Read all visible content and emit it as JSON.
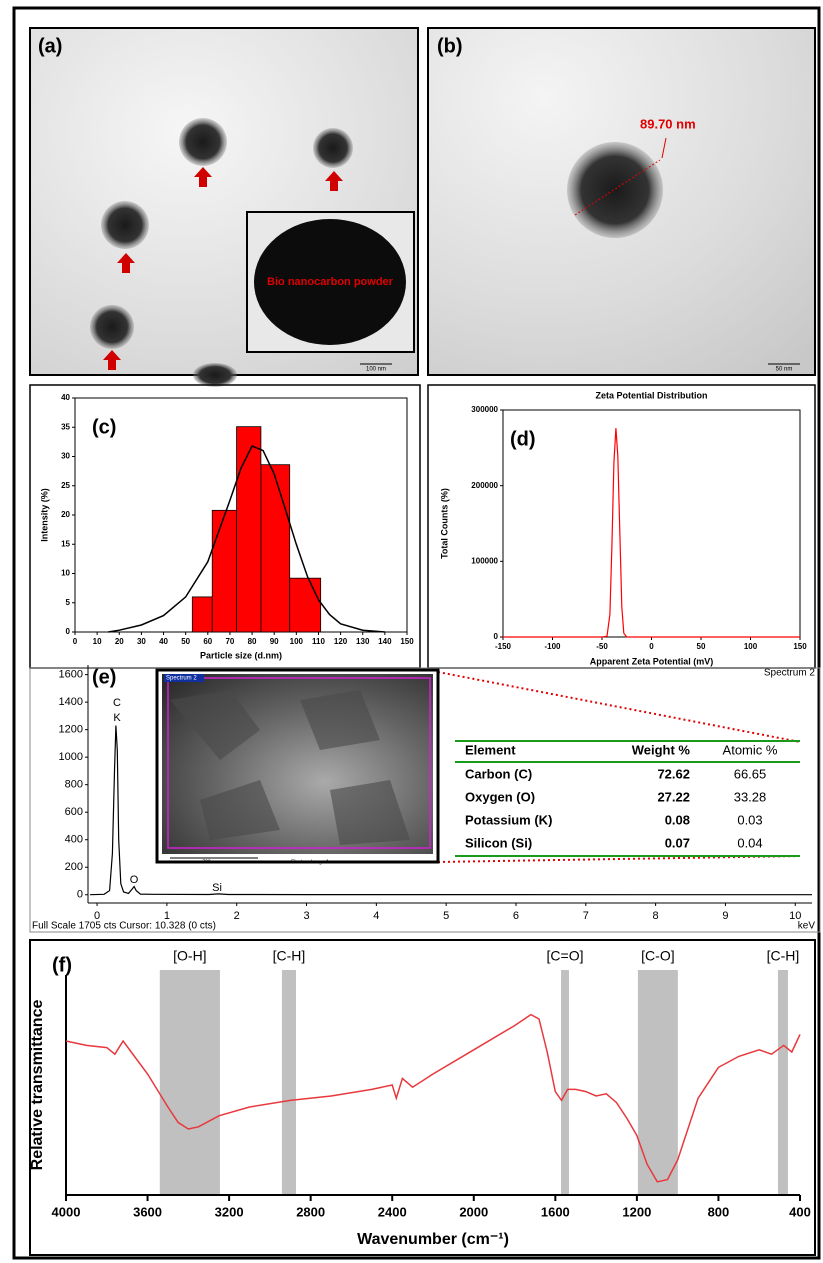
{
  "panels": {
    "a": {
      "label": "(a)",
      "inset_label": "Bio nanocarbon powder",
      "scale_bar": "100 nm"
    },
    "b": {
      "label": "(b)",
      "measurement": "89.70 nm",
      "scale_bar": "50 nm"
    }
  },
  "eds_inset": {
    "title": "Spectrum 2",
    "scale_bar": "700nm",
    "caption": "Electron Image 1"
  },
  "eds_table": {
    "header": [
      "Element",
      "Weight %",
      "Atomic %"
    ],
    "rows": [
      [
        "Carbon (C)",
        "72.62",
        "66.65"
      ],
      [
        "Oxygen (O)",
        "27.22",
        "33.28"
      ],
      [
        "Potassium (K)",
        "0.08",
        "0.03"
      ],
      [
        "Silicon (Si)",
        "0.07",
        "0.04"
      ]
    ]
  },
  "chart_data": [
    {
      "type": "histogram",
      "panel_label": "(c)",
      "x_label": "Particle size (d.nm)",
      "y_label": "Intensity (%)",
      "bins": [
        53,
        62,
        73,
        84,
        97,
        111
      ],
      "counts": [
        6,
        20.8,
        35.1,
        28.6,
        9.2
      ],
      "color": "#ff0000",
      "fit": {
        "x": [
          15,
          20,
          30,
          40,
          50,
          60,
          70,
          75,
          80,
          85,
          90,
          95,
          100,
          105,
          110,
          115,
          120,
          130,
          140
        ],
        "values": [
          0,
          0.3,
          1.2,
          2.8,
          6,
          12,
          22.5,
          28,
          31.8,
          31,
          27,
          21,
          15,
          9.5,
          5.5,
          3,
          1.4,
          0.3,
          0
        ],
        "color": "#000000"
      },
      "xlim": [
        0,
        150
      ],
      "xticks": [
        0,
        10,
        20,
        30,
        40,
        50,
        60,
        70,
        80,
        90,
        100,
        110,
        120,
        130,
        140,
        150
      ],
      "ylim": [
        0,
        40
      ],
      "yticks": [
        0,
        5,
        10,
        15,
        20,
        25,
        30,
        35,
        40
      ]
    },
    {
      "type": "line",
      "panel_label": "(d)",
      "title": "Zeta Potential Distribution",
      "x_label": "Apparent Zeta Potential (mV)",
      "y_label": "Total Counts (%)",
      "series": [
        {
          "x": [
            -150,
            -50,
            -45,
            -42,
            -40,
            -38,
            -36,
            -34,
            -32,
            -30,
            -28,
            -25,
            150
          ],
          "values": [
            0,
            0,
            1000,
            30000,
            120000,
            230000,
            276000,
            240000,
            140000,
            40000,
            5000,
            0,
            0
          ],
          "color": "#ff0000"
        }
      ],
      "xlim": [
        -150,
        150
      ],
      "xticks": [
        -150,
        -100,
        -50,
        0,
        50,
        100,
        150
      ],
      "ylim": [
        0,
        300000
      ],
      "yticks": [
        0,
        100000,
        200000,
        300000
      ]
    },
    {
      "type": "line",
      "panel_label": "(e)",
      "spectrum_label": "Spectrum 2",
      "footer": "Full Scale 1705 cts Cursor: 10.328 (0 cts)",
      "x_unit": "keV",
      "peak_labels": [
        "C",
        "K",
        "O",
        "Si"
      ],
      "series": [
        {
          "x": [
            -0.1,
            0.1,
            0.18,
            0.22,
            0.25,
            0.27,
            0.29,
            0.31,
            0.34,
            0.38,
            0.45,
            0.5,
            0.53,
            0.56,
            0.62,
            0.8,
            1.6,
            1.74,
            1.88,
            3,
            10.24
          ],
          "values": [
            0,
            3,
            30,
            300,
            900,
            1230,
            1050,
            400,
            80,
            20,
            10,
            40,
            60,
            30,
            5,
            3,
            2,
            6,
            2,
            1,
            0
          ],
          "color": "#000000"
        }
      ],
      "xlim": [
        -0.13,
        10.24
      ],
      "xticks": [
        0,
        1,
        2,
        3,
        4,
        5,
        6,
        7,
        8,
        9,
        10
      ],
      "ylim": [
        -60,
        1670
      ],
      "yticks": [
        0,
        200,
        400,
        600,
        800,
        1000,
        1200,
        1400,
        1600
      ]
    },
    {
      "type": "line",
      "panel_label": "(f)",
      "x_label": "Wavenumber (cm⁻¹)",
      "y_label": "Relative transmittance",
      "bands": [
        {
          "label": "[O-H]",
          "range": [
            3540,
            3245
          ]
        },
        {
          "label": "[C-H]",
          "range": [
            2941,
            2872
          ]
        },
        {
          "label": "[C=O]",
          "range": [
            1572,
            1533
          ]
        },
        {
          "label": "[C-O]",
          "range": [
            1195,
            999
          ]
        },
        {
          "label": "[C-H]",
          "range": [
            508,
            459
          ]
        }
      ],
      "band_color": "#c0c0c0",
      "series": [
        {
          "x": [
            4000,
            3900,
            3800,
            3760,
            3720,
            3680,
            3600,
            3500,
            3450,
            3400,
            3350,
            3250,
            3100,
            2900,
            2700,
            2500,
            2400,
            2380,
            2350,
            2300,
            2200,
            2000,
            1800,
            1720,
            1680,
            1640,
            1600,
            1570,
            1540,
            1500,
            1450,
            1400,
            1350,
            1300,
            1250,
            1200,
            1150,
            1100,
            1050,
            1000,
            900,
            800,
            700,
            600,
            540,
            480,
            440,
            400
          ],
          "values": [
            70,
            68,
            67,
            64,
            70,
            65,
            55,
            40,
            33,
            30,
            31,
            36,
            40,
            43,
            45,
            48,
            50,
            44,
            53,
            49,
            55,
            66,
            77,
            82,
            80,
            65,
            47,
            43,
            48,
            48,
            47,
            45,
            46,
            42,
            35,
            27,
            14,
            6,
            7,
            16,
            44,
            58,
            63,
            66,
            64,
            68,
            65,
            73
          ],
          "color": "#e8383d"
        }
      ],
      "xlim": [
        4000,
        400
      ],
      "xticks": [
        4000,
        3600,
        3200,
        2800,
        2400,
        2000,
        1600,
        1200,
        800,
        400
      ],
      "ylim": [
        0,
        100
      ]
    }
  ]
}
